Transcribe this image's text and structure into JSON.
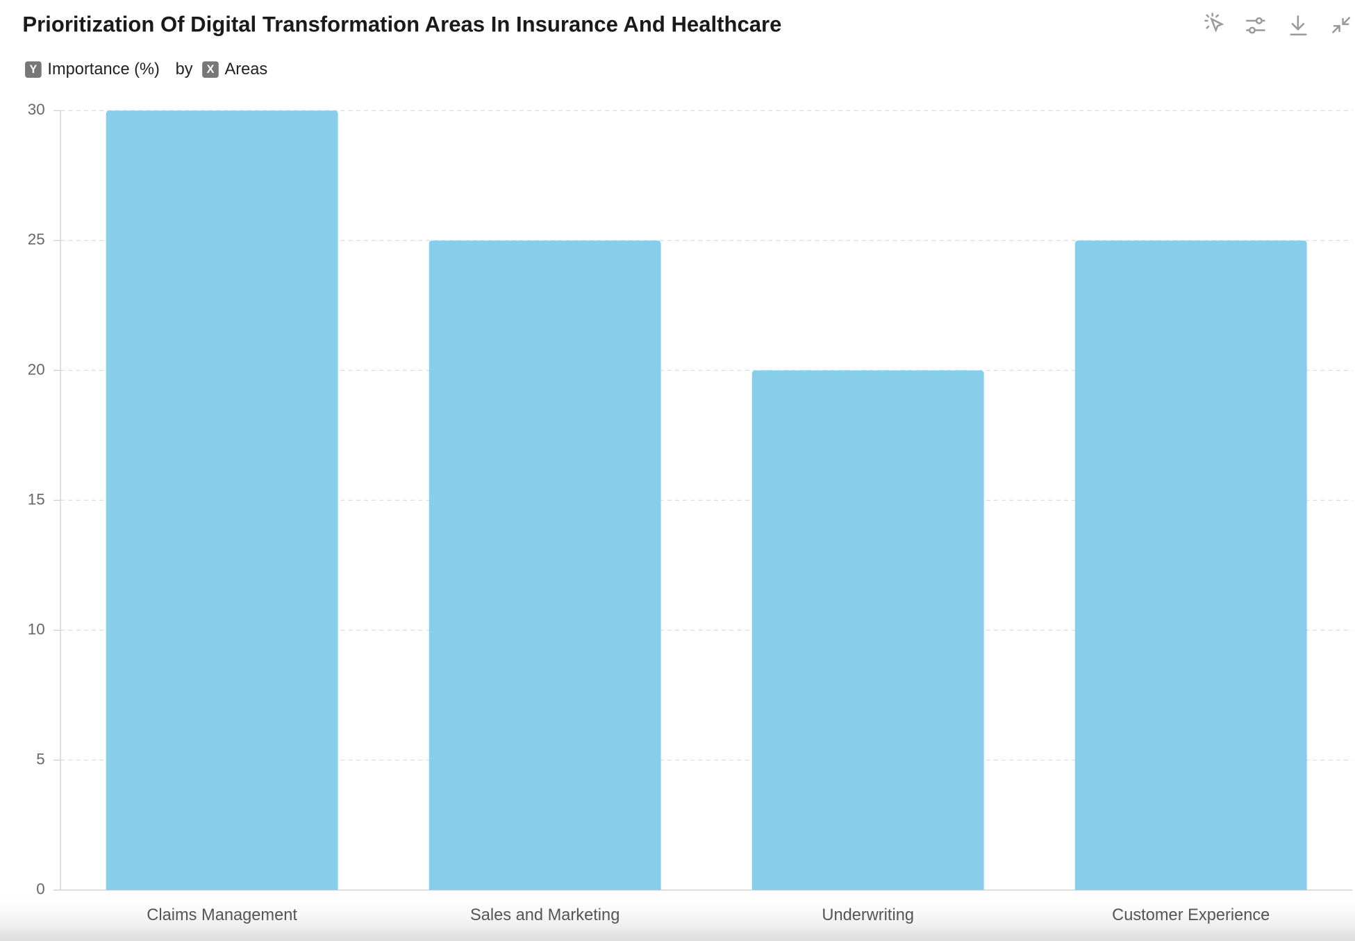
{
  "chart_data": {
    "type": "bar",
    "title": "Prioritization Of Digital Transformation Areas In Insurance And Healthcare",
    "y_badge": "Y",
    "y_label": "Importance (%)",
    "by": "by",
    "x_badge": "X",
    "x_label": "Areas",
    "categories": [
      "Claims Management",
      "Sales and Marketing",
      "Underwriting",
      "Customer Experience"
    ],
    "values": [
      30,
      25,
      20,
      25
    ],
    "color": "#87ceeb",
    "ylim": [
      0,
      30
    ],
    "yticks": [
      0,
      5,
      10,
      15,
      20,
      25,
      30
    ],
    "grid": true
  }
}
